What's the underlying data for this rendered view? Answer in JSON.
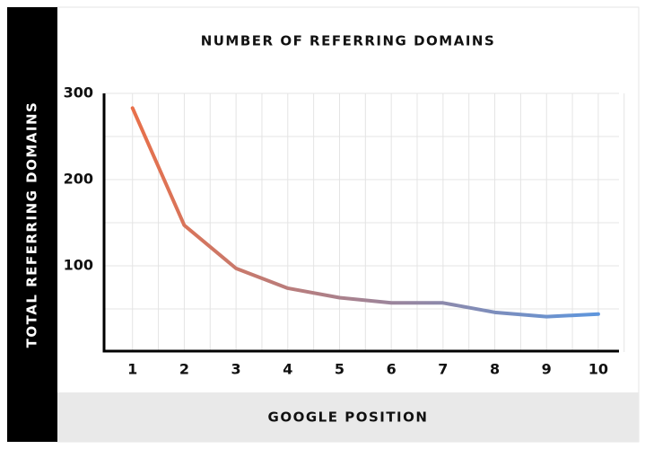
{
  "chart_data": {
    "type": "line",
    "title": "NUMBER OF REFERRING DOMAINS",
    "x_label": "GOOGLE POSITION",
    "y_label": "TOTAL REFERRING DOMAINS",
    "x": [
      1,
      2,
      3,
      4,
      5,
      6,
      7,
      8,
      9,
      10
    ],
    "series": [
      {
        "name": "Referring domains",
        "color": [
          "#e8704a",
          "#5e96dd"
        ],
        "values": [
          283,
          147,
          97,
          74,
          63,
          57,
          57,
          46,
          41,
          44
        ]
      }
    ],
    "xlim": [
      0.45,
      10.4
    ],
    "ylim": [
      0,
      300
    ],
    "xticks": [
      1,
      2,
      3,
      4,
      5,
      6,
      7,
      8,
      9,
      10
    ],
    "yticks": [
      100,
      200,
      300
    ],
    "xgrid": [
      1,
      1.5,
      2,
      2.5,
      3,
      3.5,
      4,
      4.5,
      5,
      5.5,
      6,
      6.5,
      7,
      7.5,
      8,
      8.5,
      9,
      9.5,
      10,
      10.5
    ],
    "ygrid": [
      50,
      100,
      150,
      200,
      250,
      300
    ]
  }
}
